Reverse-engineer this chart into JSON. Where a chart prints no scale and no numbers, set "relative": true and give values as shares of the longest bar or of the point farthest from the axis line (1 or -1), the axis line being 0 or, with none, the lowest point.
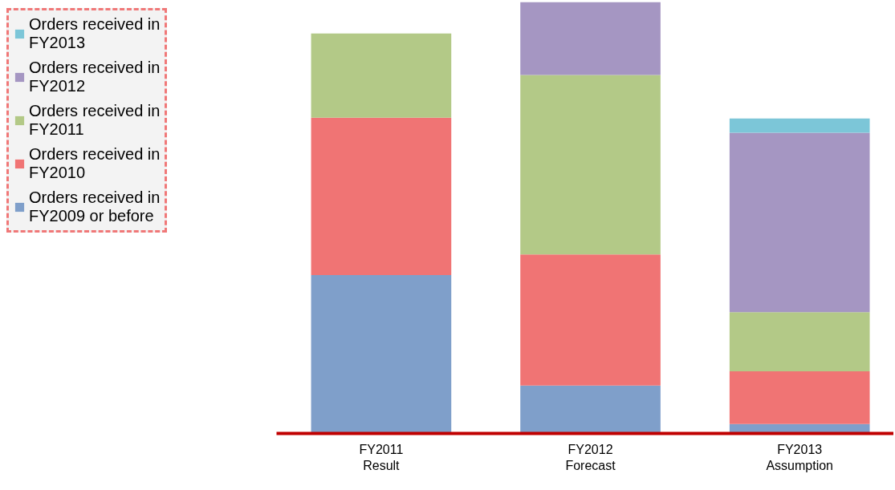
{
  "chart_data": {
    "type": "bar",
    "stacked": true,
    "relative": true,
    "legend": "left",
    "categories": [
      "FY2011 Result",
      "FY2012 Forecast",
      "FY2013 Assumption"
    ],
    "series": [
      {
        "name": "Orders received in FY2009 or before",
        "color": "#7f9fca",
        "values": [
          0.367,
          0.111,
          0.022
        ]
      },
      {
        "name": "Orders received in FY2010",
        "color": "#f07474",
        "values": [
          0.365,
          0.304,
          0.122
        ]
      },
      {
        "name": "Orders received in FY2011",
        "color": "#b3c987",
        "values": [
          0.195,
          0.416,
          0.137
        ]
      },
      {
        "name": "Orders received in FY2012",
        "color": "#a596c2",
        "values": [
          null,
          0.169,
          0.416
        ]
      },
      {
        "name": "Orders received in FY2013",
        "color": "#7cc6d8",
        "values": [
          null,
          null,
          0.033
        ]
      }
    ]
  }
}
